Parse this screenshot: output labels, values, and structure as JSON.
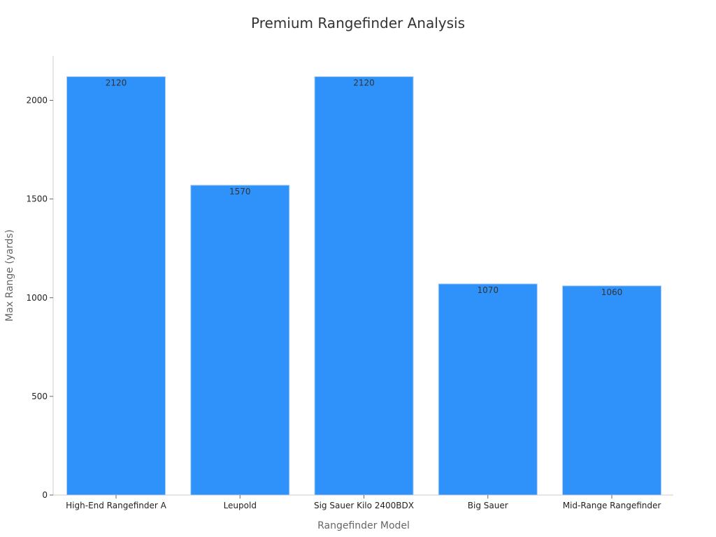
{
  "chart_data": {
    "type": "bar",
    "title": "Premium Rangefinder Analysis",
    "xlabel": "Rangefinder Model",
    "ylabel": "Max Range (yards)",
    "categories": [
      "High-End Rangefinder A",
      "Leupold",
      "Sig Sauer Kilo 2400BDX",
      "Big Sauer",
      "Mid-Range Rangefinder"
    ],
    "values": [
      2120,
      1570,
      2120,
      1070,
      1060
    ],
    "yticks": [
      0,
      500,
      1000,
      1500,
      2000
    ],
    "ylim": [
      0,
      2225
    ],
    "grid": false,
    "legend": "none",
    "bar_color": "#2e92fa",
    "bar_edge_color": "#a9cdf5"
  }
}
